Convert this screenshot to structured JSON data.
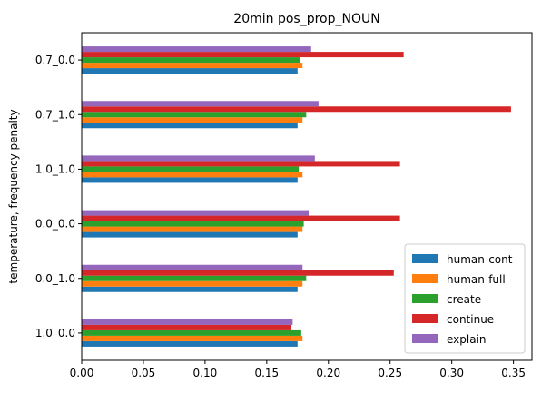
{
  "chart_data": {
    "type": "bar",
    "orientation": "horizontal",
    "title": "20min pos_prop_NOUN",
    "xlabel": "",
    "ylabel": "temperature, frequency penalty",
    "categories": [
      "1.0_0.0",
      "0.0_1.0",
      "0.0_0.0",
      "1.0_1.0",
      "0.7_1.0",
      "0.7_0.0"
    ],
    "xlim": [
      0,
      0.365
    ],
    "xticks": [
      "0.00",
      "0.05",
      "0.10",
      "0.15",
      "0.20",
      "0.25",
      "0.30",
      "0.35"
    ],
    "xtick_values": [
      0,
      0.05,
      0.1,
      0.15,
      0.2,
      0.25,
      0.3,
      0.35
    ],
    "grid": false,
    "legend_position": "lower-right",
    "series": [
      {
        "name": "human-cont",
        "color": "#1f77b4",
        "values": [
          0.175,
          0.175,
          0.175,
          0.175,
          0.175,
          0.175
        ]
      },
      {
        "name": "human-full",
        "color": "#ff7f0e",
        "values": [
          0.179,
          0.179,
          0.179,
          0.179,
          0.179,
          0.179
        ]
      },
      {
        "name": "create",
        "color": "#2ca02c",
        "values": [
          0.178,
          0.182,
          0.18,
          0.176,
          0.182,
          0.177
        ]
      },
      {
        "name": "continue",
        "color": "#d62728",
        "values": [
          0.17,
          0.253,
          0.258,
          0.258,
          0.348,
          0.261
        ]
      },
      {
        "name": "explain",
        "color": "#9467bd",
        "values": [
          0.171,
          0.179,
          0.184,
          0.189,
          0.192,
          0.186
        ]
      }
    ]
  }
}
